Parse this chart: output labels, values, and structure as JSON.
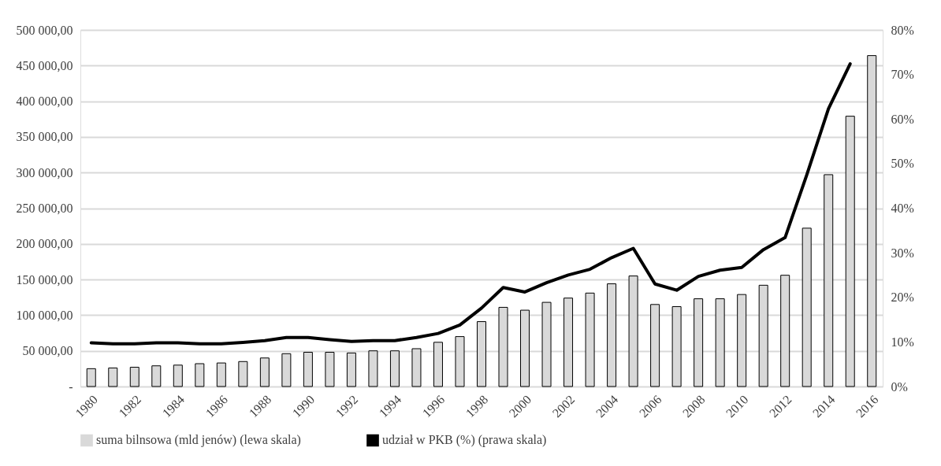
{
  "chart_data": {
    "type": "bar",
    "categories": [
      "1980",
      null,
      "1982",
      null,
      "1984",
      null,
      "1986",
      null,
      "1988",
      null,
      "1990",
      null,
      "1992",
      null,
      "1994",
      null,
      "1996",
      null,
      "1998",
      null,
      "2000",
      null,
      "2002",
      null,
      "2004",
      null,
      "2006",
      null,
      "2008",
      null,
      "2010",
      null,
      "2012",
      null,
      "2014",
      null,
      "2016"
    ],
    "series": [
      {
        "name": "suma bilnsowa (mld jenów) (lewa skala)",
        "color": "#d9d9d9",
        "values": [
          25000,
          26000,
          27000,
          29000,
          30000,
          32000,
          33000,
          35000,
          40000,
          46000,
          48000,
          48000,
          47000,
          50000,
          50000,
          53000,
          62000,
          70000,
          91000,
          111000,
          107000,
          118000,
          124000,
          131000,
          144000,
          155000,
          115000,
          112000,
          123000,
          123000,
          129000,
          142000,
          156000,
          222000,
          297000,
          379000,
          464000
        ]
      },
      {
        "name": "udział w PKB (%) (prawa skala)",
        "type": "line",
        "axis": "y2",
        "color": "#000000",
        "values": [
          9.8,
          9.6,
          9.6,
          9.8,
          9.8,
          9.6,
          9.6,
          9.9,
          10.3,
          11.0,
          11.0,
          10.5,
          10.1,
          10.3,
          10.3,
          11.0,
          11.9,
          13.8,
          17.6,
          22.2,
          21.2,
          23.3,
          25.0,
          26.3,
          28.9,
          31.0,
          23.0,
          21.6,
          24.7,
          26.1,
          26.7,
          30.7,
          33.4,
          47.5,
          62.3,
          72.4,
          null
        ]
      }
    ],
    "ylim": [
      0,
      500000
    ],
    "yticks": [
      {
        "value": 0,
        "label": "-"
      },
      {
        "value": 50000,
        "label": "50 000,00"
      },
      {
        "value": 100000,
        "label": "100 000,00"
      },
      {
        "value": 150000,
        "label": "150 000,00"
      },
      {
        "value": 200000,
        "label": "200 000,00"
      },
      {
        "value": 250000,
        "label": "250 000,00"
      },
      {
        "value": 300000,
        "label": "300 000,00"
      },
      {
        "value": 350000,
        "label": "350 000,00"
      },
      {
        "value": 400000,
        "label": "400 000,00"
      },
      {
        "value": 450000,
        "label": "450 000,00"
      },
      {
        "value": 500000,
        "label": "500 000,00"
      }
    ],
    "y2lim": [
      0,
      80
    ],
    "y2ticks": [
      {
        "value": 0,
        "label": "0%"
      },
      {
        "value": 10,
        "label": "10%"
      },
      {
        "value": 20,
        "label": "20%"
      },
      {
        "value": 30,
        "label": "30%"
      },
      {
        "value": 40,
        "label": "40%"
      },
      {
        "value": 50,
        "label": "50%"
      },
      {
        "value": 60,
        "label": "60%"
      },
      {
        "value": 70,
        "label": "70%"
      },
      {
        "value": 80,
        "label": "80%"
      }
    ],
    "grid": "y",
    "legend": "bottom"
  }
}
